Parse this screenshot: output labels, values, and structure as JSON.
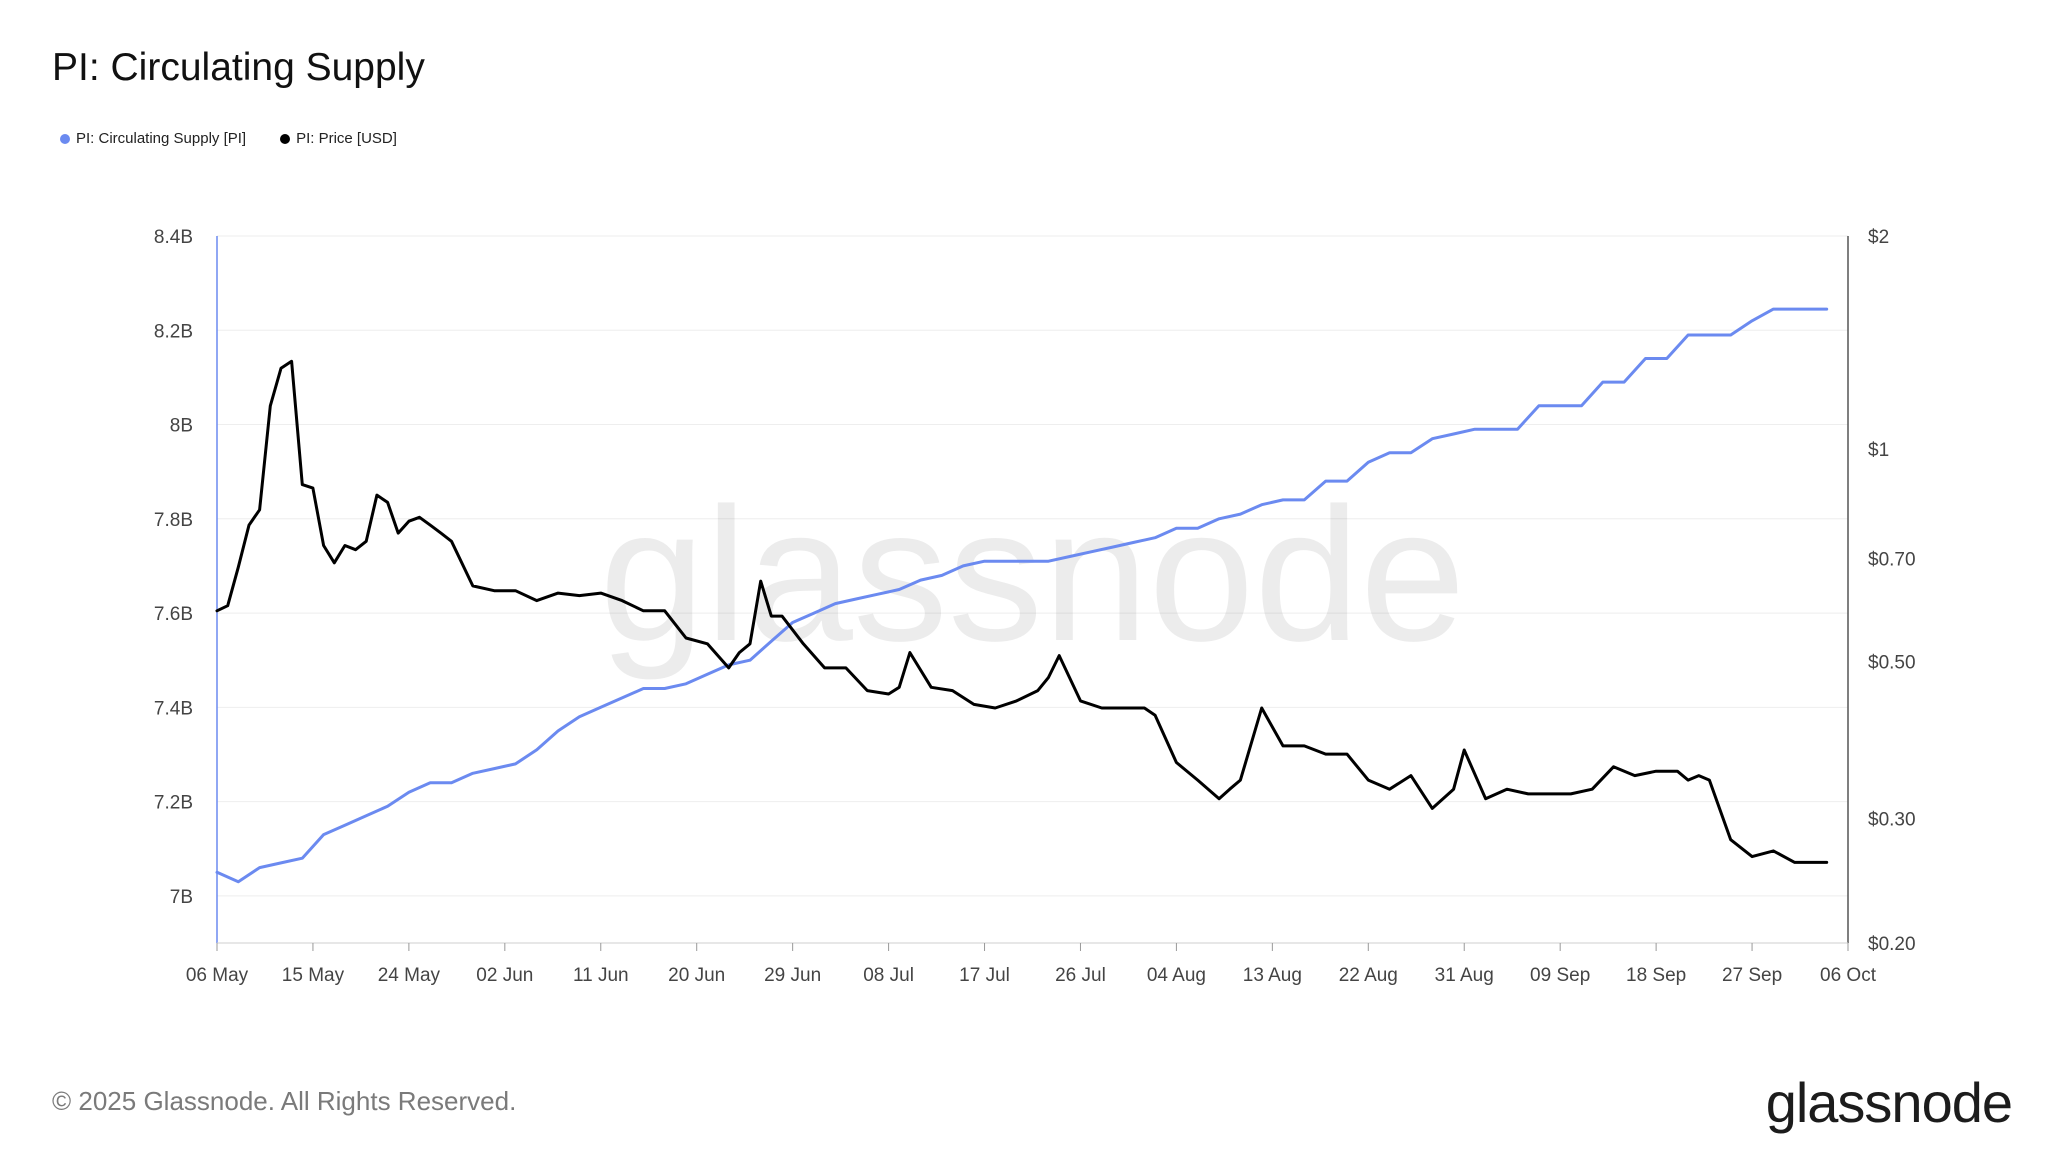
{
  "title": "PI: Circulating Supply",
  "legend": {
    "supply_label": "PI: Circulating Supply [PI]",
    "price_label": "PI: Price [USD]"
  },
  "watermark": "glassnode",
  "footer": "© 2025 Glassnode. All Rights Reserved.",
  "brand": "glassnode",
  "colors": {
    "supply": "#6b8af0",
    "price": "#000000",
    "grid": "#eeeeee"
  },
  "chart_data": {
    "type": "line",
    "title": "PI: Circulating Supply",
    "x_ticks": [
      "06 May",
      "15 May",
      "24 May",
      "02 Jun",
      "11 Jun",
      "20 Jun",
      "29 Jun",
      "08 Jul",
      "17 Jul",
      "26 Jul",
      "04 Aug",
      "13 Aug",
      "22 Aug",
      "31 Aug",
      "09 Sep",
      "18 Sep",
      "27 Sep",
      "06 Oct"
    ],
    "x_range": [
      "2025-05-06",
      "2025-10-06"
    ],
    "y_left": {
      "ticks": [
        "7B",
        "7.2B",
        "7.4B",
        "7.6B",
        "7.8B",
        "8B",
        "8.2B",
        "8.4B"
      ],
      "tick_values": [
        7.0,
        7.2,
        7.4,
        7.6,
        7.8,
        8.0,
        8.2,
        8.4
      ],
      "range": [
        6.9,
        8.4
      ],
      "unit": "billions PI"
    },
    "y_right": {
      "ticks": [
        "$0.20",
        "$0.30",
        "$0.50",
        "$0.70",
        "$1",
        "$2"
      ],
      "tick_values": [
        0.2,
        0.3,
        0.5,
        0.7,
        1.0,
        2.0
      ],
      "range": [
        0.2,
        2.0
      ],
      "scale": "log"
    },
    "grid": true,
    "legend_position": "top-left",
    "series": [
      {
        "name": "PI: Circulating Supply [PI]",
        "axis": "left",
        "x": [
          "2025-05-06",
          "2025-05-08",
          "2025-05-10",
          "2025-05-12",
          "2025-05-14",
          "2025-05-16",
          "2025-05-18",
          "2025-05-20",
          "2025-05-22",
          "2025-05-24",
          "2025-05-26",
          "2025-05-28",
          "2025-05-30",
          "2025-06-01",
          "2025-06-03",
          "2025-06-05",
          "2025-06-07",
          "2025-06-09",
          "2025-06-11",
          "2025-06-13",
          "2025-06-15",
          "2025-06-17",
          "2025-06-19",
          "2025-06-21",
          "2025-06-23",
          "2025-06-25",
          "2025-06-27",
          "2025-06-29",
          "2025-07-01",
          "2025-07-03",
          "2025-07-05",
          "2025-07-07",
          "2025-07-09",
          "2025-07-11",
          "2025-07-13",
          "2025-07-15",
          "2025-07-17",
          "2025-07-19",
          "2025-07-21",
          "2025-07-23",
          "2025-07-25",
          "2025-07-27",
          "2025-07-29",
          "2025-07-31",
          "2025-08-02",
          "2025-08-04",
          "2025-08-06",
          "2025-08-08",
          "2025-08-10",
          "2025-08-12",
          "2025-08-14",
          "2025-08-16",
          "2025-08-18",
          "2025-08-20",
          "2025-08-22",
          "2025-08-24",
          "2025-08-26",
          "2025-08-28",
          "2025-08-30",
          "2025-09-01",
          "2025-09-03",
          "2025-09-05",
          "2025-09-07",
          "2025-09-09",
          "2025-09-11",
          "2025-09-13",
          "2025-09-15",
          "2025-09-17",
          "2025-09-19",
          "2025-09-21",
          "2025-09-23",
          "2025-09-25",
          "2025-09-27",
          "2025-09-29",
          "2025-10-01",
          "2025-10-04"
        ],
        "values": [
          7.05,
          7.03,
          7.06,
          7.07,
          7.08,
          7.13,
          7.15,
          7.17,
          7.19,
          7.22,
          7.24,
          7.24,
          7.26,
          7.27,
          7.28,
          7.31,
          7.35,
          7.38,
          7.4,
          7.42,
          7.44,
          7.44,
          7.45,
          7.47,
          7.49,
          7.5,
          7.54,
          7.58,
          7.6,
          7.62,
          7.63,
          7.64,
          7.65,
          7.67,
          7.68,
          7.7,
          7.71,
          7.71,
          7.71,
          7.71,
          7.72,
          7.73,
          7.74,
          7.75,
          7.76,
          7.78,
          7.78,
          7.8,
          7.81,
          7.83,
          7.84,
          7.84,
          7.88,
          7.88,
          7.92,
          7.94,
          7.94,
          7.97,
          7.98,
          7.99,
          7.99,
          7.99,
          8.04,
          8.04,
          8.04,
          8.09,
          8.09,
          8.14,
          8.14,
          8.19,
          8.19,
          8.19,
          8.22,
          8.245,
          8.245,
          8.245
        ]
      },
      {
        "name": "PI: Price [USD]",
        "axis": "right",
        "x": [
          "2025-05-06",
          "2025-05-07",
          "2025-05-08",
          "2025-05-09",
          "2025-05-10",
          "2025-05-11",
          "2025-05-12",
          "2025-05-13",
          "2025-05-14",
          "2025-05-15",
          "2025-05-16",
          "2025-05-17",
          "2025-05-18",
          "2025-05-19",
          "2025-05-20",
          "2025-05-21",
          "2025-05-22",
          "2025-05-23",
          "2025-05-24",
          "2025-05-25",
          "2025-05-26",
          "2025-05-27",
          "2025-05-28",
          "2025-05-30",
          "2025-06-01",
          "2025-06-03",
          "2025-06-05",
          "2025-06-07",
          "2025-06-09",
          "2025-06-11",
          "2025-06-13",
          "2025-06-15",
          "2025-06-17",
          "2025-06-19",
          "2025-06-21",
          "2025-06-23",
          "2025-06-24",
          "2025-06-25",
          "2025-06-26",
          "2025-06-27",
          "2025-06-28",
          "2025-06-30",
          "2025-07-02",
          "2025-07-04",
          "2025-07-06",
          "2025-07-08",
          "2025-07-09",
          "2025-07-10",
          "2025-07-12",
          "2025-07-14",
          "2025-07-16",
          "2025-07-18",
          "2025-07-20",
          "2025-07-22",
          "2025-07-23",
          "2025-07-24",
          "2025-07-26",
          "2025-07-28",
          "2025-07-30",
          "2025-08-01",
          "2025-08-02",
          "2025-08-04",
          "2025-08-06",
          "2025-08-08",
          "2025-08-09",
          "2025-08-10",
          "2025-08-12",
          "2025-08-14",
          "2025-08-16",
          "2025-08-18",
          "2025-08-20",
          "2025-08-22",
          "2025-08-24",
          "2025-08-26",
          "2025-08-28",
          "2025-08-30",
          "2025-08-31",
          "2025-09-02",
          "2025-09-04",
          "2025-09-06",
          "2025-09-08",
          "2025-09-10",
          "2025-09-12",
          "2025-09-14",
          "2025-09-16",
          "2025-09-18",
          "2025-09-20",
          "2025-09-21",
          "2025-09-22",
          "2025-09-23",
          "2025-09-25",
          "2025-09-27",
          "2025-09-29",
          "2025-10-01",
          "2025-10-04"
        ],
        "values": [
          0.59,
          0.6,
          0.68,
          0.78,
          0.82,
          1.15,
          1.3,
          1.33,
          0.89,
          0.88,
          0.73,
          0.69,
          0.73,
          0.72,
          0.74,
          0.86,
          0.84,
          0.76,
          0.79,
          0.8,
          0.78,
          0.76,
          0.74,
          0.64,
          0.63,
          0.63,
          0.61,
          0.625,
          0.62,
          0.625,
          0.61,
          0.59,
          0.59,
          0.54,
          0.53,
          0.49,
          0.515,
          0.53,
          0.65,
          0.58,
          0.58,
          0.53,
          0.49,
          0.49,
          0.455,
          0.45,
          0.46,
          0.515,
          0.46,
          0.455,
          0.435,
          0.43,
          0.44,
          0.455,
          0.475,
          0.51,
          0.44,
          0.43,
          0.43,
          0.43,
          0.42,
          0.36,
          0.34,
          0.32,
          0.33,
          0.34,
          0.43,
          0.38,
          0.38,
          0.37,
          0.37,
          0.34,
          0.33,
          0.345,
          0.31,
          0.33,
          0.375,
          0.32,
          0.33,
          0.325,
          0.325,
          0.325,
          0.33,
          0.355,
          0.345,
          0.35,
          0.35,
          0.34,
          0.345,
          0.34,
          0.28,
          0.265,
          0.27,
          0.26,
          0.26
        ]
      }
    ]
  }
}
